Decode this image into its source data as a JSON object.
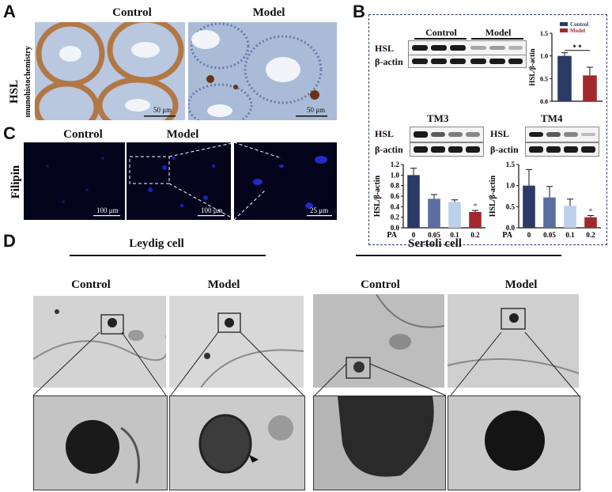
{
  "panels": {
    "A": {
      "letter": "A",
      "ylabel_line1": "HSL",
      "ylabel_line2": "Immunohistochemistry",
      "col_control": "Control",
      "col_model": "Model",
      "scale1": "50 μm",
      "scale2": "50 μm"
    },
    "B": {
      "letter": "B",
      "blot_control": "Control",
      "blot_model": "Model",
      "row_hsl": "HSL",
      "row_actin": "β-actin",
      "tm3_title": "TM3",
      "tm4_title": "TM4",
      "tm3_hsl": "HSL",
      "tm3_actin": "β-actin",
      "tm4_hsl": "HSL",
      "tm4_actin": "β-actin"
    },
    "C": {
      "letter": "C",
      "ylabel": "Filipin",
      "col_control": "Control",
      "col_model": "Model",
      "scale1": "100 μm",
      "scale2": "100 μm",
      "scale3": "25 μm"
    },
    "D": {
      "letter": "D",
      "group1": "Leydig cell",
      "group2": "Sertoli cell",
      "c1": "Control",
      "c2": "Model",
      "c3": "Control",
      "c4": "Model"
    }
  },
  "chart_data": [
    {
      "type": "bar",
      "id": "B-main",
      "categories": [
        "Control",
        "Model"
      ],
      "values": [
        1.0,
        0.57
      ],
      "errors": [
        0.07,
        0.18
      ],
      "ylabel": "HSL/β-actin",
      "ylim": [
        0,
        1.5
      ],
      "yticks": [
        "0.0",
        "0.5",
        "1.0",
        "1.5"
      ],
      "legend": [
        "Control",
        "Model"
      ],
      "legend_position": "top-right",
      "annotation": "* *",
      "colors": [
        "#2b3a67",
        "#a1292e"
      ]
    },
    {
      "type": "bar",
      "id": "B-TM3",
      "xprefix": "PA",
      "categories": [
        "0",
        "0.05",
        "0.1",
        "0.2"
      ],
      "values": [
        1.0,
        0.55,
        0.49,
        0.3
      ],
      "errors": [
        0.13,
        0.08,
        0.04,
        0.03
      ],
      "ylabel": "HSL/β-actin",
      "ylim": [
        0,
        1.2
      ],
      "yticks": [
        "0.0",
        "0.2",
        "0.4",
        "0.6",
        "0.8",
        "1.0",
        "1.2"
      ],
      "annotation": "*",
      "colors": [
        "#2b3a67",
        "#5a6ea0",
        "#bcd0ea",
        "#a1292e"
      ]
    },
    {
      "type": "bar",
      "id": "B-TM4",
      "xprefix": "PA",
      "categories": [
        "0",
        "0.05",
        "0.1",
        "0.2"
      ],
      "values": [
        1.0,
        0.72,
        0.52,
        0.25
      ],
      "errors": [
        0.38,
        0.26,
        0.16,
        0.04
      ],
      "ylabel": "HSL/β-actin",
      "ylim": [
        0,
        1.5
      ],
      "yticks": [
        "0.0",
        "0.5",
        "1.0",
        "1.5"
      ],
      "annotation": "*",
      "colors": [
        "#2b3a67",
        "#5a6ea0",
        "#bcd0ea",
        "#a1292e"
      ]
    }
  ]
}
